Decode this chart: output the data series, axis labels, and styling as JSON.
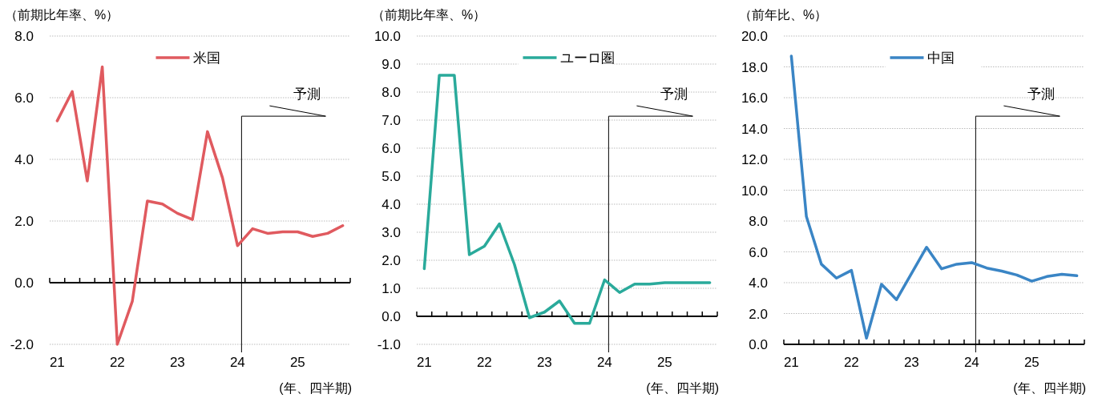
{
  "chart_data": [
    {
      "type": "line",
      "ylabel": "（前期比年率、%）",
      "xlabel": "(年、四半期)",
      "categories": [
        "21",
        null,
        null,
        null,
        "22",
        null,
        null,
        null,
        "23",
        null,
        null,
        null,
        "24",
        null,
        null,
        null,
        "25",
        null,
        null,
        null
      ],
      "series": [
        {
          "name": "米国",
          "color": "#e05a5f",
          "values": [
            5.25,
            6.2,
            3.3,
            7.0,
            -2.0,
            -0.6,
            2.65,
            2.55,
            2.25,
            2.05,
            4.9,
            3.4,
            1.2,
            1.75,
            1.6,
            1.65,
            1.65,
            1.5,
            1.6,
            1.85
          ]
        }
      ],
      "ylim": [
        -2,
        8
      ],
      "yticks": [
        {
          "value": -2,
          "label": "-2.0"
        },
        {
          "value": 0,
          "label": "0.0"
        },
        {
          "value": 2,
          "label": "2.0"
        },
        {
          "value": 4,
          "label": "4.0"
        },
        {
          "value": 6,
          "label": "6.0"
        },
        {
          "value": 8,
          "label": "8.0"
        }
      ],
      "grid": "y",
      "legend": "top",
      "marker": "none",
      "ref_lines": [
        {
          "axis": "x",
          "value": "24",
          "label": "予測",
          "color": "#000000"
        }
      ]
    },
    {
      "type": "line",
      "ylabel": "（前期比年率、%）",
      "xlabel": "(年、四半期)",
      "categories": [
        "21",
        null,
        null,
        null,
        "22",
        null,
        null,
        null,
        "23",
        null,
        null,
        null,
        "24",
        null,
        null,
        null,
        "25",
        null,
        null,
        null
      ],
      "series": [
        {
          "name": "ユーロ圏",
          "color": "#2aaa9b",
          "values": [
            1.7,
            8.6,
            8.6,
            2.2,
            2.5,
            3.3,
            1.85,
            -0.05,
            0.15,
            0.55,
            -0.25,
            -0.25,
            1.3,
            0.85,
            1.15,
            1.15,
            1.2,
            1.2,
            1.2,
            1.2
          ]
        }
      ],
      "ylim": [
        -1,
        10
      ],
      "yticks": [
        {
          "value": -1,
          "label": "-1.0"
        },
        {
          "value": 0,
          "label": "0.0"
        },
        {
          "value": 1,
          "label": "1.0"
        },
        {
          "value": 2,
          "label": "2.0"
        },
        {
          "value": 3,
          "label": "3.0"
        },
        {
          "value": 4,
          "label": "4.0"
        },
        {
          "value": 5,
          "label": "5.0"
        },
        {
          "value": 6,
          "label": "6.0"
        },
        {
          "value": 7,
          "label": "7.0"
        },
        {
          "value": 8,
          "label": "8.0"
        },
        {
          "value": 9,
          "label": "9.0"
        },
        {
          "value": 10,
          "label": "10.0"
        }
      ],
      "grid": "y",
      "legend": "top",
      "marker": "none",
      "ref_lines": [
        {
          "axis": "x",
          "value": "24",
          "label": "予測",
          "color": "#000000"
        }
      ]
    },
    {
      "type": "line",
      "ylabel": "（前年比、%）",
      "xlabel": "(年、四半期)",
      "categories": [
        "21",
        null,
        null,
        null,
        "22",
        null,
        null,
        null,
        "23",
        null,
        null,
        null,
        "24",
        null,
        null,
        null,
        "25",
        null,
        null,
        null
      ],
      "series": [
        {
          "name": "中国",
          "color": "#3a85c5",
          "values": [
            18.7,
            8.3,
            5.2,
            4.3,
            4.8,
            0.4,
            3.9,
            2.9,
            4.6,
            6.3,
            4.9,
            5.2,
            5.3,
            4.95,
            4.75,
            4.5,
            4.1,
            4.4,
            4.55,
            4.45
          ]
        }
      ],
      "ylim": [
        0,
        20
      ],
      "yticks": [
        {
          "value": 0,
          "label": "0.0"
        },
        {
          "value": 2,
          "label": "2.0"
        },
        {
          "value": 4,
          "label": "4.0"
        },
        {
          "value": 6,
          "label": "6.0"
        },
        {
          "value": 8,
          "label": "8.0"
        },
        {
          "value": 10,
          "label": "10.0"
        },
        {
          "value": 12,
          "label": "12.0"
        },
        {
          "value": 14,
          "label": "14.0"
        },
        {
          "value": 16,
          "label": "16.0"
        },
        {
          "value": 18,
          "label": "18.0"
        },
        {
          "value": 20,
          "label": "20.0"
        }
      ],
      "grid": "y",
      "legend": "top",
      "marker": "none",
      "ref_lines": [
        {
          "axis": "x",
          "value": "24",
          "label": "予測",
          "color": "#000000"
        }
      ]
    }
  ]
}
